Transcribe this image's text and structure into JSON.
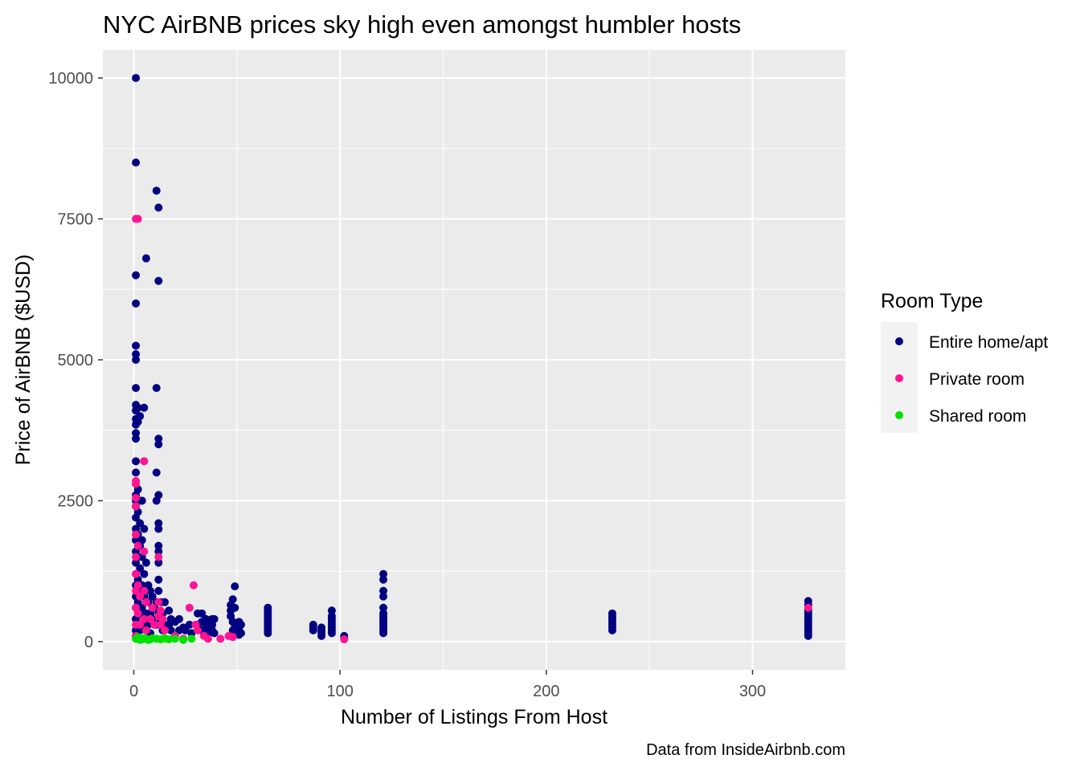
{
  "chart_data": {
    "type": "scatter",
    "title": "NYC AirBNB prices sky high even amongst humbler hosts",
    "xlabel": "Number of Listings From Host",
    "ylabel": "Price of AirBNB ($USD)",
    "caption": "Data from InsideAirbnb.com",
    "xlim": [
      -15,
      345
    ],
    "ylim": [
      -500,
      10500
    ],
    "x_ticks": [
      0,
      100,
      200,
      300
    ],
    "y_ticks": [
      0,
      2500,
      5000,
      7500,
      10000
    ],
    "grid": true,
    "legend": {
      "title": "Room Type",
      "placement": "right"
    },
    "series": [
      {
        "name": "Entire home/apt",
        "color": "#000080",
        "points": [
          [
            1,
            10000
          ],
          [
            1,
            8500
          ],
          [
            1,
            6500
          ],
          [
            1,
            6000
          ],
          [
            1,
            5250
          ],
          [
            1,
            5100
          ],
          [
            1,
            5000
          ],
          [
            1,
            4500
          ],
          [
            1,
            4200
          ],
          [
            1,
            4100
          ],
          [
            1,
            3950
          ],
          [
            1,
            3850
          ],
          [
            1,
            3700
          ],
          [
            1,
            3600
          ],
          [
            1,
            3200
          ],
          [
            1,
            3000
          ],
          [
            1,
            2800
          ],
          [
            1,
            2600
          ],
          [
            1,
            2500
          ],
          [
            1,
            2400
          ],
          [
            1,
            2200
          ],
          [
            1,
            2000
          ],
          [
            1,
            1800
          ],
          [
            1,
            1600
          ],
          [
            1,
            1400
          ],
          [
            1,
            1200
          ],
          [
            1,
            1000
          ],
          [
            1,
            800
          ],
          [
            1,
            600
          ],
          [
            1,
            400
          ],
          [
            1,
            200
          ],
          [
            1,
            100
          ],
          [
            2,
            4150
          ],
          [
            2,
            3900
          ],
          [
            2,
            2700
          ],
          [
            2,
            2300
          ],
          [
            2,
            1900
          ],
          [
            2,
            1500
          ],
          [
            2,
            1100
          ],
          [
            2,
            700
          ],
          [
            2,
            300
          ],
          [
            3,
            4000
          ],
          [
            3,
            2500
          ],
          [
            3,
            2100
          ],
          [
            3,
            1700
          ],
          [
            3,
            1300
          ],
          [
            3,
            900
          ],
          [
            3,
            500
          ],
          [
            3,
            200
          ],
          [
            4,
            2500
          ],
          [
            4,
            1800
          ],
          [
            4,
            1500
          ],
          [
            4,
            1000
          ],
          [
            4,
            600
          ],
          [
            4,
            300
          ],
          [
            5,
            4150
          ],
          [
            5,
            2000
          ],
          [
            5,
            1200
          ],
          [
            5,
            800
          ],
          [
            5,
            400
          ],
          [
            6,
            6800
          ],
          [
            6,
            1400
          ],
          [
            6,
            900
          ],
          [
            6,
            500
          ],
          [
            6,
            200
          ],
          [
            7,
            1000
          ],
          [
            7,
            700
          ],
          [
            7,
            300
          ],
          [
            8,
            900
          ],
          [
            8,
            500
          ],
          [
            8,
            150
          ],
          [
            9,
            800
          ],
          [
            9,
            400
          ],
          [
            10,
            600
          ],
          [
            10,
            300
          ],
          [
            11,
            8000
          ],
          [
            11,
            4500
          ],
          [
            11,
            3000
          ],
          [
            11,
            2500
          ],
          [
            11,
            700
          ],
          [
            11,
            300
          ],
          [
            12,
            7700
          ],
          [
            12,
            6400
          ],
          [
            12,
            3600
          ],
          [
            12,
            3500
          ],
          [
            12,
            2600
          ],
          [
            12,
            2100
          ],
          [
            12,
            2000
          ],
          [
            12,
            1700
          ],
          [
            12,
            1600
          ],
          [
            12,
            1400
          ],
          [
            12,
            1100
          ],
          [
            12,
            900
          ],
          [
            12,
            500
          ],
          [
            13,
            700
          ],
          [
            13,
            400
          ],
          [
            14,
            500
          ],
          [
            14,
            200
          ],
          [
            15,
            700
          ],
          [
            15,
            300
          ],
          [
            17,
            550
          ],
          [
            17,
            300
          ],
          [
            18,
            400
          ],
          [
            18,
            200
          ],
          [
            20,
            350
          ],
          [
            22,
            400
          ],
          [
            22,
            200
          ],
          [
            24,
            250
          ],
          [
            25,
            200
          ],
          [
            27,
            300
          ],
          [
            28,
            150
          ],
          [
            31,
            500
          ],
          [
            31,
            300
          ],
          [
            33,
            500
          ],
          [
            33,
            350
          ],
          [
            33,
            200
          ],
          [
            35,
            400
          ],
          [
            35,
            250
          ],
          [
            36,
            300
          ],
          [
            36,
            150
          ],
          [
            38,
            400
          ],
          [
            38,
            300
          ],
          [
            38,
            200
          ],
          [
            39,
            400
          ],
          [
            39,
            150
          ],
          [
            47,
            650
          ],
          [
            47,
            550
          ],
          [
            47,
            450
          ],
          [
            48,
            750
          ],
          [
            48,
            350
          ],
          [
            48,
            200
          ],
          [
            49,
            980
          ],
          [
            49,
            600
          ],
          [
            49,
            250
          ],
          [
            51,
            350
          ],
          [
            51,
            200
          ],
          [
            51,
            120
          ],
          [
            52,
            300
          ],
          [
            52,
            150
          ],
          [
            65,
            600
          ],
          [
            65,
            550
          ],
          [
            65,
            500
          ],
          [
            65,
            450
          ],
          [
            65,
            400
          ],
          [
            65,
            350
          ],
          [
            65,
            300
          ],
          [
            65,
            250
          ],
          [
            65,
            200
          ],
          [
            65,
            150
          ],
          [
            87,
            300
          ],
          [
            87,
            250
          ],
          [
            87,
            200
          ],
          [
            91,
            250
          ],
          [
            91,
            200
          ],
          [
            91,
            150
          ],
          [
            91,
            100
          ],
          [
            96,
            550
          ],
          [
            96,
            450
          ],
          [
            96,
            400
          ],
          [
            96,
            350
          ],
          [
            96,
            300
          ],
          [
            96,
            250
          ],
          [
            96,
            200
          ],
          [
            96,
            150
          ],
          [
            102,
            100
          ],
          [
            102,
            60
          ],
          [
            121,
            1200
          ],
          [
            121,
            1100
          ],
          [
            121,
            900
          ],
          [
            121,
            800
          ],
          [
            121,
            600
          ],
          [
            121,
            500
          ],
          [
            121,
            450
          ],
          [
            121,
            400
          ],
          [
            121,
            350
          ],
          [
            121,
            300
          ],
          [
            121,
            250
          ],
          [
            121,
            200
          ],
          [
            121,
            150
          ],
          [
            232,
            500
          ],
          [
            232,
            450
          ],
          [
            232,
            400
          ],
          [
            232,
            350
          ],
          [
            232,
            300
          ],
          [
            232,
            250
          ],
          [
            232,
            200
          ],
          [
            327,
            720
          ],
          [
            327,
            650
          ],
          [
            327,
            550
          ],
          [
            327,
            500
          ],
          [
            327,
            450
          ],
          [
            327,
            400
          ],
          [
            327,
            350
          ],
          [
            327,
            300
          ],
          [
            327,
            250
          ],
          [
            327,
            200
          ],
          [
            327,
            150
          ],
          [
            327,
            100
          ]
        ]
      },
      {
        "name": "Private room",
        "color": "#FF1493",
        "points": [
          [
            1,
            7500
          ],
          [
            2,
            7500
          ],
          [
            1,
            2850
          ],
          [
            1,
            2800
          ],
          [
            1,
            2550
          ],
          [
            1,
            2400
          ],
          [
            1,
            1900
          ],
          [
            1,
            1500
          ],
          [
            1,
            1200
          ],
          [
            1,
            900
          ],
          [
            1,
            600
          ],
          [
            1,
            300
          ],
          [
            1,
            100
          ],
          [
            2,
            1700
          ],
          [
            2,
            1000
          ],
          [
            2,
            500
          ],
          [
            3,
            800
          ],
          [
            3,
            300
          ],
          [
            5,
            3200
          ],
          [
            5,
            1600
          ],
          [
            5,
            900
          ],
          [
            5,
            400
          ],
          [
            6,
            700
          ],
          [
            6,
            200
          ],
          [
            8,
            400
          ],
          [
            9,
            600
          ],
          [
            10,
            300
          ],
          [
            12,
            1500
          ],
          [
            12,
            700
          ],
          [
            12,
            450
          ],
          [
            13,
            550
          ],
          [
            13,
            300
          ],
          [
            14,
            400
          ],
          [
            15,
            200
          ],
          [
            20,
            100
          ],
          [
            24,
            50
          ],
          [
            27,
            600
          ],
          [
            29,
            1000
          ],
          [
            30,
            300
          ],
          [
            31,
            200
          ],
          [
            34,
            100
          ],
          [
            36,
            50
          ],
          [
            42,
            50
          ],
          [
            46,
            100
          ],
          [
            48,
            80
          ],
          [
            102,
            40
          ],
          [
            327,
            600
          ]
        ]
      },
      {
        "name": "Shared room",
        "color": "#00E000",
        "points": [
          [
            1,
            50
          ],
          [
            2,
            80
          ],
          [
            3,
            30
          ],
          [
            4,
            40
          ],
          [
            5,
            60
          ],
          [
            6,
            50
          ],
          [
            7,
            30
          ],
          [
            8,
            40
          ],
          [
            9,
            60
          ],
          [
            11,
            50
          ],
          [
            13,
            40
          ],
          [
            15,
            60
          ],
          [
            17,
            40
          ],
          [
            20,
            50
          ],
          [
            24,
            30
          ],
          [
            28,
            50
          ]
        ]
      }
    ]
  }
}
